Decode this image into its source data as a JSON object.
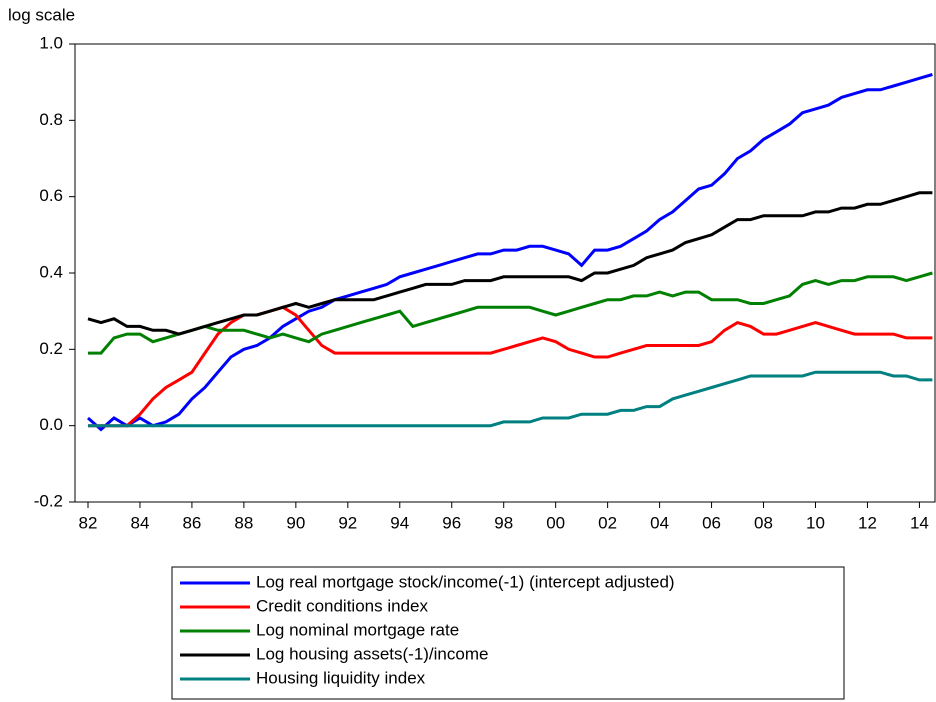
{
  "chart_data": {
    "type": "line",
    "y_axis_label": "log scale",
    "x": [
      1982,
      1982.5,
      1983,
      1983.5,
      1984,
      1984.5,
      1985,
      1985.5,
      1986,
      1986.5,
      1987,
      1987.5,
      1988,
      1988.5,
      1989,
      1989.5,
      1990,
      1990.5,
      1991,
      1991.5,
      1992,
      1992.5,
      1993,
      1993.5,
      1994,
      1994.5,
      1995,
      1995.5,
      1996,
      1996.5,
      1997,
      1997.5,
      1998,
      1998.5,
      1999,
      1999.5,
      2000,
      2000.5,
      2001,
      2001.5,
      2002,
      2002.5,
      2003,
      2003.5,
      2004,
      2004.5,
      2005,
      2005.5,
      2006,
      2006.5,
      2007,
      2007.5,
      2008,
      2008.5,
      2009,
      2009.5,
      2010,
      2010.5,
      2011,
      2011.5,
      2012,
      2012.5,
      2013,
      2013.5,
      2014,
      2014.5
    ],
    "series": [
      {
        "name": "Log real mortgage stock/income(-1) (intercept adjusted)",
        "color": "#0000ff",
        "values": [
          0.02,
          -0.01,
          0.02,
          0.0,
          0.02,
          0.0,
          0.01,
          0.03,
          0.07,
          0.1,
          0.14,
          0.18,
          0.2,
          0.21,
          0.23,
          0.26,
          0.28,
          0.3,
          0.31,
          0.33,
          0.34,
          0.35,
          0.36,
          0.37,
          0.39,
          0.4,
          0.41,
          0.42,
          0.43,
          0.44,
          0.45,
          0.45,
          0.46,
          0.46,
          0.47,
          0.47,
          0.46,
          0.45,
          0.42,
          0.46,
          0.46,
          0.47,
          0.49,
          0.51,
          0.54,
          0.56,
          0.59,
          0.62,
          0.63,
          0.66,
          0.7,
          0.72,
          0.75,
          0.77,
          0.79,
          0.82,
          0.83,
          0.84,
          0.86,
          0.87,
          0.88,
          0.88,
          0.89,
          0.9,
          0.91,
          0.92
        ]
      },
      {
        "name": "Credit conditions index",
        "color": "#ff0000",
        "values": [
          0,
          0,
          0,
          0,
          0.03,
          0.07,
          0.1,
          0.12,
          0.14,
          0.19,
          0.24,
          0.27,
          0.29,
          0.29,
          0.3,
          0.31,
          0.29,
          0.25,
          0.21,
          0.19,
          0.19,
          0.19,
          0.19,
          0.19,
          0.19,
          0.19,
          0.19,
          0.19,
          0.19,
          0.19,
          0.19,
          0.19,
          0.2,
          0.21,
          0.22,
          0.23,
          0.22,
          0.2,
          0.19,
          0.18,
          0.18,
          0.19,
          0.2,
          0.21,
          0.21,
          0.21,
          0.21,
          0.21,
          0.22,
          0.25,
          0.27,
          0.26,
          0.24,
          0.24,
          0.25,
          0.26,
          0.27,
          0.26,
          0.25,
          0.24,
          0.24,
          0.24,
          0.24,
          0.23,
          0.23,
          0.23
        ]
      },
      {
        "name": "Log nominal mortgage rate",
        "color": "#008000",
        "values": [
          0.19,
          0.19,
          0.23,
          0.24,
          0.24,
          0.22,
          0.23,
          0.24,
          0.25,
          0.26,
          0.25,
          0.25,
          0.25,
          0.24,
          0.23,
          0.24,
          0.23,
          0.22,
          0.24,
          0.25,
          0.26,
          0.27,
          0.28,
          0.29,
          0.3,
          0.26,
          0.27,
          0.28,
          0.29,
          0.3,
          0.31,
          0.31,
          0.31,
          0.31,
          0.31,
          0.3,
          0.29,
          0.3,
          0.31,
          0.32,
          0.33,
          0.33,
          0.34,
          0.34,
          0.35,
          0.34,
          0.35,
          0.35,
          0.33,
          0.33,
          0.33,
          0.32,
          0.32,
          0.33,
          0.34,
          0.37,
          0.38,
          0.37,
          0.38,
          0.38,
          0.39,
          0.39,
          0.39,
          0.38,
          0.39,
          0.4
        ]
      },
      {
        "name": "Log housing assets(-1)/income",
        "color": "#000000",
        "values": [
          0.28,
          0.27,
          0.28,
          0.26,
          0.26,
          0.25,
          0.25,
          0.24,
          0.25,
          0.26,
          0.27,
          0.28,
          0.29,
          0.29,
          0.3,
          0.31,
          0.32,
          0.31,
          0.32,
          0.33,
          0.33,
          0.33,
          0.33,
          0.34,
          0.35,
          0.36,
          0.37,
          0.37,
          0.37,
          0.38,
          0.38,
          0.38,
          0.39,
          0.39,
          0.39,
          0.39,
          0.39,
          0.39,
          0.38,
          0.4,
          0.4,
          0.41,
          0.42,
          0.44,
          0.45,
          0.46,
          0.48,
          0.49,
          0.5,
          0.52,
          0.54,
          0.54,
          0.55,
          0.55,
          0.55,
          0.55,
          0.56,
          0.56,
          0.57,
          0.57,
          0.58,
          0.58,
          0.59,
          0.6,
          0.61,
          0.61
        ]
      },
      {
        "name": "Housing liquidity index",
        "color": "#008080",
        "values": [
          0,
          0,
          0,
          0,
          0,
          0,
          0,
          0,
          0,
          0,
          0,
          0,
          0,
          0,
          0,
          0,
          0,
          0,
          0,
          0,
          0,
          0,
          0,
          0,
          0,
          0,
          0,
          0,
          0,
          0,
          0,
          0,
          0.01,
          0.01,
          0.01,
          0.02,
          0.02,
          0.02,
          0.03,
          0.03,
          0.03,
          0.04,
          0.04,
          0.05,
          0.05,
          0.07,
          0.08,
          0.09,
          0.1,
          0.11,
          0.12,
          0.13,
          0.13,
          0.13,
          0.13,
          0.13,
          0.14,
          0.14,
          0.14,
          0.14,
          0.14,
          0.14,
          0.13,
          0.13,
          0.12,
          0.12
        ]
      }
    ],
    "xlim": [
      1981.5,
      2014.6
    ],
    "xticks": [
      {
        "value": 1982,
        "label": "82"
      },
      {
        "value": 1984,
        "label": "84"
      },
      {
        "value": 1986,
        "label": "86"
      },
      {
        "value": 1988,
        "label": "88"
      },
      {
        "value": 1990,
        "label": "90"
      },
      {
        "value": 1992,
        "label": "92"
      },
      {
        "value": 1994,
        "label": "94"
      },
      {
        "value": 1996,
        "label": "96"
      },
      {
        "value": 1998,
        "label": "98"
      },
      {
        "value": 2000,
        "label": "00"
      },
      {
        "value": 2002,
        "label": "02"
      },
      {
        "value": 2004,
        "label": "04"
      },
      {
        "value": 2006,
        "label": "06"
      },
      {
        "value": 2008,
        "label": "08"
      },
      {
        "value": 2010,
        "label": "10"
      },
      {
        "value": 2012,
        "label": "12"
      },
      {
        "value": 2014,
        "label": "14"
      }
    ],
    "ylim": [
      -0.2,
      1.0
    ],
    "yticks": [
      -0.2,
      {
        "value": 0,
        "label": "0.0"
      },
      0.2,
      0.4,
      0.6,
      0.8,
      {
        "value": 1,
        "label": "1.0"
      }
    ],
    "grid": false,
    "legend": "bottom"
  }
}
